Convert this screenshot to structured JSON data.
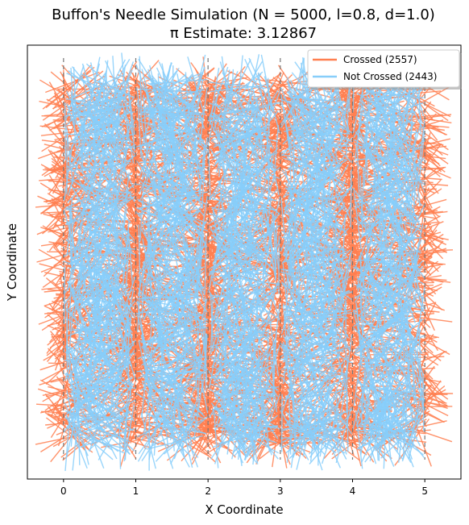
{
  "chart_data": {
    "type": "line",
    "title": "Buffon's Needle Simulation (N = 5000, l=0.8, d=1.0)",
    "subtitle": "π Estimate: 3.12867",
    "xlabel": "X Coordinate",
    "ylabel": "Y Coordinate",
    "xlim": [
      -0.5,
      5.5
    ],
    "ylim": [
      -0.5,
      5.5
    ],
    "x_ticks": [
      0,
      1,
      2,
      3,
      4,
      5
    ],
    "y_ticks_shown": false,
    "grid": false,
    "reference_lines": [
      0,
      1,
      2,
      3,
      4,
      5
    ],
    "reference_line_style": "dashed vertical, gray",
    "legend_position": "top-right",
    "needle_length": 0.8,
    "line_spacing": 1.0,
    "total_needles": 5000,
    "pi_estimate": 3.12867,
    "series": [
      {
        "name": "Crossed (2557)",
        "count": 2557,
        "color": "#FF7F50"
      },
      {
        "name": "Not Crossed (2443)",
        "count": 2443,
        "color": "#87CEFA"
      }
    ]
  }
}
